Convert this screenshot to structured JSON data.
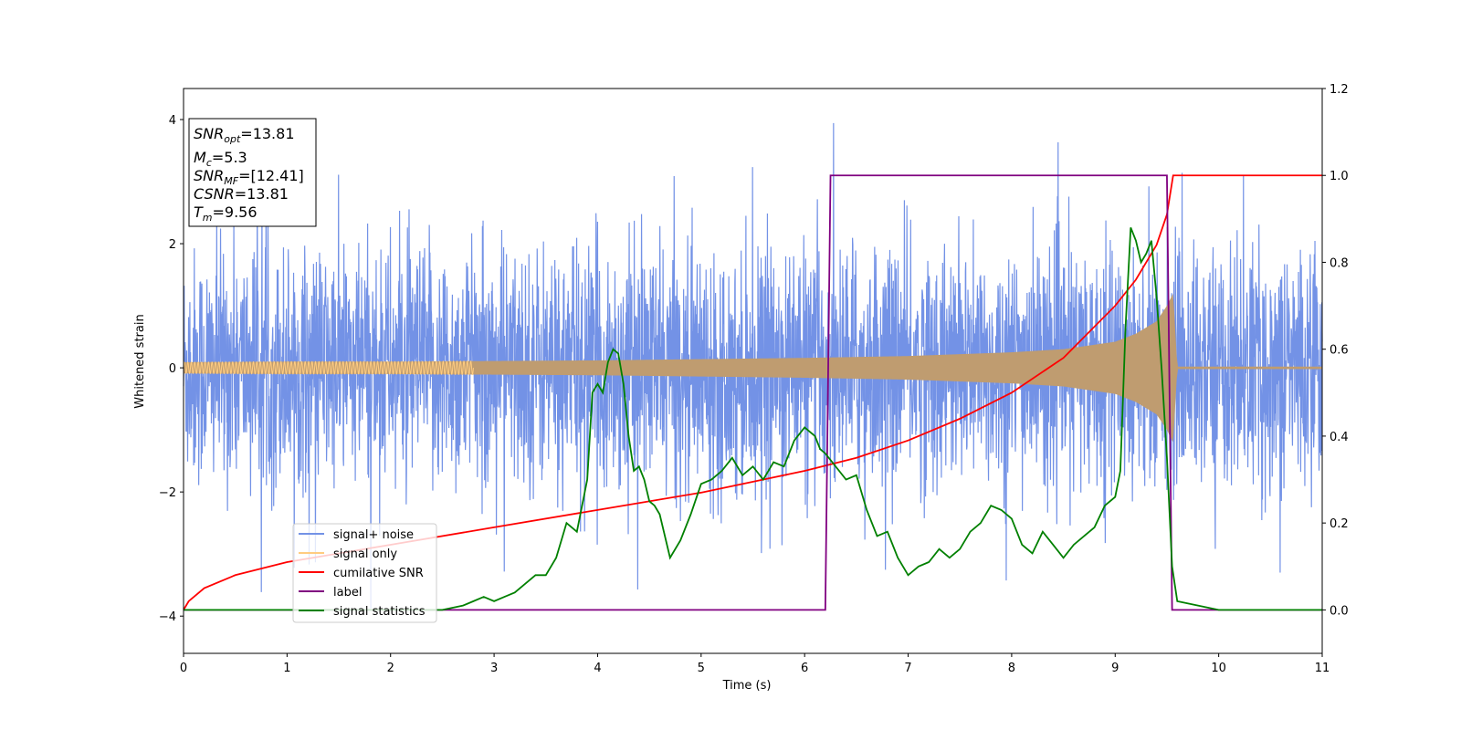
{
  "chart_data": {
    "type": "line",
    "title": "",
    "xlabel": "Time (s)",
    "ylabel": "Whitened strain",
    "xlim": [
      0,
      11
    ],
    "ylim": [
      -4.6,
      4.5
    ],
    "y2lim": [
      -0.1,
      1.2
    ],
    "x_ticks": [
      "0",
      "1",
      "2",
      "3",
      "4",
      "5",
      "6",
      "7",
      "8",
      "9",
      "10",
      "11"
    ],
    "y_ticks": [
      "−4",
      "−2",
      "0",
      "2",
      "4"
    ],
    "y2_ticks": [
      "0.0",
      "0.2",
      "0.4",
      "0.6",
      "0.8",
      "1.0",
      "1.2"
    ],
    "grid": false,
    "legend_position": "lower-left",
    "legend": [
      "signal+ noise",
      "signal only",
      "cumilative SNR",
      "label",
      "signal statistics"
    ],
    "info_box": {
      "snr_opt": "=13.81",
      "mc": "=5.3",
      "snr_mf": "=[12.41]",
      "csnr": "=13.81",
      "tm": "=9.56"
    },
    "series": [
      {
        "name": "signal+ noise",
        "axis": "left",
        "color": "#7392e6",
        "description_values": {
          "typical_range": [
            -2.3,
            2.3
          ],
          "max": 4.1,
          "min": -4.1
        }
      },
      {
        "name": "signal only",
        "axis": "left",
        "color": "#ffcc80",
        "envelope": {
          "t": [
            0,
            1,
            2,
            3,
            4,
            5,
            6,
            7,
            8,
            8.5,
            9,
            9.2,
            9.4,
            9.5,
            9.56,
            9.6,
            11
          ],
          "amp": [
            0.09,
            0.1,
            0.1,
            0.11,
            0.12,
            0.14,
            0.16,
            0.19,
            0.25,
            0.3,
            0.42,
            0.55,
            0.75,
            1.0,
            1.2,
            0.02,
            0.02
          ]
        }
      },
      {
        "name": "cumilative SNR",
        "axis": "right",
        "color": "#ff0000",
        "x": [
          0,
          0.05,
          0.2,
          0.5,
          1,
          2,
          3,
          4,
          5,
          6,
          6.5,
          7,
          7.5,
          8,
          8.5,
          9,
          9.2,
          9.4,
          9.5,
          9.56,
          11
        ],
        "y": [
          0.0,
          0.02,
          0.05,
          0.08,
          0.11,
          0.15,
          0.19,
          0.23,
          0.27,
          0.32,
          0.35,
          0.39,
          0.44,
          0.5,
          0.58,
          0.7,
          0.76,
          0.84,
          0.91,
          1.0,
          1.0
        ]
      },
      {
        "name": "label",
        "axis": "right",
        "color": "#800080",
        "x": [
          0,
          6.2,
          6.25,
          9.5,
          9.55,
          11
        ],
        "y": [
          0,
          0,
          1,
          1,
          0,
          0
        ]
      },
      {
        "name": "signal statistics",
        "axis": "right",
        "color": "#008000",
        "x": [
          0,
          1,
          2,
          2.5,
          2.7,
          2.8,
          2.9,
          3.0,
          3.1,
          3.2,
          3.3,
          3.4,
          3.5,
          3.6,
          3.7,
          3.8,
          3.9,
          3.95,
          4.0,
          4.05,
          4.1,
          4.15,
          4.2,
          4.25,
          4.3,
          4.35,
          4.4,
          4.45,
          4.5,
          4.55,
          4.6,
          4.7,
          4.8,
          4.9,
          5.0,
          5.1,
          5.2,
          5.3,
          5.4,
          5.5,
          5.6,
          5.7,
          5.8,
          5.9,
          6.0,
          6.1,
          6.15,
          6.2,
          6.3,
          6.4,
          6.5,
          6.6,
          6.7,
          6.8,
          6.9,
          7.0,
          7.1,
          7.2,
          7.3,
          7.4,
          7.5,
          7.6,
          7.7,
          7.8,
          7.9,
          8.0,
          8.1,
          8.2,
          8.3,
          8.4,
          8.5,
          8.6,
          8.7,
          8.8,
          8.9,
          9.0,
          9.05,
          9.1,
          9.15,
          9.2,
          9.25,
          9.3,
          9.35,
          9.4,
          9.45,
          9.5,
          9.55,
          9.6,
          9.8,
          10,
          11
        ],
        "y": [
          0.0,
          0.0,
          0.0,
          0.0,
          0.01,
          0.02,
          0.03,
          0.02,
          0.03,
          0.04,
          0.06,
          0.08,
          0.08,
          0.12,
          0.2,
          0.18,
          0.3,
          0.5,
          0.52,
          0.5,
          0.57,
          0.6,
          0.59,
          0.52,
          0.4,
          0.32,
          0.33,
          0.3,
          0.25,
          0.24,
          0.22,
          0.12,
          0.16,
          0.22,
          0.29,
          0.3,
          0.32,
          0.35,
          0.31,
          0.33,
          0.3,
          0.34,
          0.33,
          0.39,
          0.42,
          0.4,
          0.37,
          0.36,
          0.33,
          0.3,
          0.31,
          0.23,
          0.17,
          0.18,
          0.12,
          0.08,
          0.1,
          0.11,
          0.14,
          0.12,
          0.14,
          0.18,
          0.2,
          0.24,
          0.23,
          0.21,
          0.15,
          0.13,
          0.18,
          0.15,
          0.12,
          0.15,
          0.17,
          0.19,
          0.24,
          0.26,
          0.32,
          0.65,
          0.88,
          0.85,
          0.8,
          0.82,
          0.85,
          0.72,
          0.55,
          0.35,
          0.1,
          0.02,
          0.01,
          0.0,
          0.0
        ]
      }
    ]
  }
}
